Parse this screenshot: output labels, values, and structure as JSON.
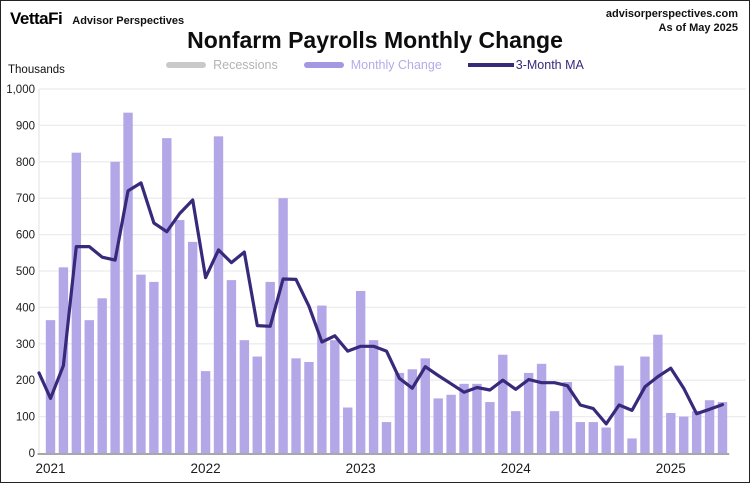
{
  "header": {
    "brand": "VettaFi",
    "brand_subtitle": "Advisor Perspectives",
    "site": "advisorperspectives.com",
    "as_of": "As of May 2025"
  },
  "title": "Nonfarm Payrolls Monthly Change",
  "legend": [
    {
      "label": "Recessions",
      "swatch_color": "#c9c9c9",
      "text_color": "#b3b3b3",
      "swatch_type": "bar"
    },
    {
      "label": "Monthly Change",
      "swatch_color": "#a598e3",
      "text_color": "#b6aae9",
      "swatch_type": "bar"
    },
    {
      "label": "3-Month MA",
      "swatch_color": "#38297b",
      "text_color": "#38297b",
      "swatch_type": "line"
    }
  ],
  "y_axis": {
    "unit_label": "Thousands",
    "min": 0,
    "max": 1000,
    "step": 100,
    "top_tick_label": "1,000"
  },
  "x_axis": {
    "year_labels": [
      "2021",
      "2022",
      "2023",
      "2024",
      "2025"
    ]
  },
  "chart_data": {
    "type": "bar+line",
    "title": "Nonfarm Payrolls Monthly Change",
    "ylabel": "Thousands",
    "ylim": [
      0,
      1000
    ],
    "ytick_step": 100,
    "grid": true,
    "legend_position": "top-center",
    "months": [
      "2021-01",
      "2021-02",
      "2021-03",
      "2021-04",
      "2021-05",
      "2021-06",
      "2021-07",
      "2021-08",
      "2021-09",
      "2021-10",
      "2021-11",
      "2021-12",
      "2022-01",
      "2022-02",
      "2022-03",
      "2022-04",
      "2022-05",
      "2022-06",
      "2022-07",
      "2022-08",
      "2022-09",
      "2022-10",
      "2022-11",
      "2022-12",
      "2023-01",
      "2023-02",
      "2023-03",
      "2023-04",
      "2023-05",
      "2023-06",
      "2023-07",
      "2023-08",
      "2023-09",
      "2023-10",
      "2023-11",
      "2023-12",
      "2024-01",
      "2024-02",
      "2024-03",
      "2024-04",
      "2024-05",
      "2024-06",
      "2024-07",
      "2024-08",
      "2024-09",
      "2024-10",
      "2024-11",
      "2024-12",
      "2025-01",
      "2025-02",
      "2025-03",
      "2025-04",
      "2025-05"
    ],
    "series": [
      {
        "name": "Monthly Change",
        "type": "bar",
        "color": "#b4a7e7",
        "values": [
          365,
          510,
          825,
          365,
          425,
          800,
          935,
          490,
          470,
          865,
          640,
          580,
          225,
          870,
          475,
          310,
          265,
          470,
          700,
          260,
          250,
          405,
          310,
          125,
          445,
          310,
          85,
          220,
          230,
          260,
          150,
          160,
          190,
          190,
          140,
          270,
          115,
          220,
          245,
          115,
          195,
          85,
          85,
          70,
          240,
          40,
          265,
          325,
          110,
          100,
          115,
          145,
          140
        ]
      },
      {
        "name": "3-Month MA",
        "type": "line",
        "color": "#38297b",
        "lead_in_value": 220,
        "values": [
          150,
          240,
          567,
          567,
          538,
          530,
          720,
          742,
          632,
          608,
          658,
          695,
          482,
          558,
          523,
          552,
          350,
          348,
          478,
          477,
          403,
          305,
          322,
          280,
          293,
          293,
          280,
          205,
          178,
          237,
          213,
          190,
          167,
          180,
          173,
          200,
          175,
          202,
          193,
          193,
          185,
          132,
          122,
          80,
          132,
          117,
          182,
          210,
          233,
          178,
          108,
          120,
          133
        ]
      },
      {
        "name": "Recessions",
        "type": "span",
        "color": "#c9c9c9",
        "spans": []
      }
    ]
  },
  "colors": {
    "bar": "#b4a7e7",
    "ma_line": "#38297b",
    "gridline": "#ececec",
    "axis_line": "#e0e0e0",
    "baseline": "#a8a8a8",
    "tick_text": "#1c1c1c"
  }
}
